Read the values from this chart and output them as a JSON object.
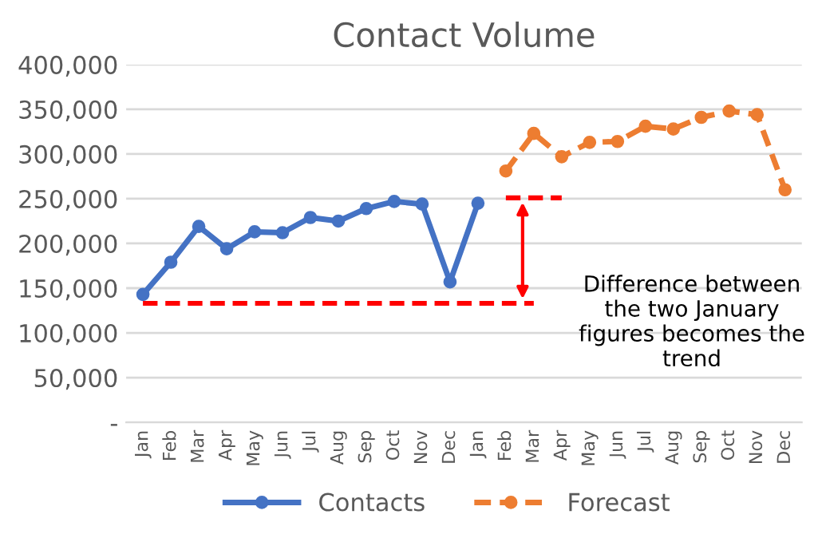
{
  "chart_data": {
    "type": "line",
    "title": "Contact Volume",
    "categories": [
      "Jan",
      "Feb",
      "Mar",
      "Apr",
      "May",
      "Jun",
      "Jul",
      "Aug",
      "Sep",
      "Oct",
      "Nov",
      "Dec",
      "Jan",
      "Feb",
      "Mar",
      "Apr",
      "May",
      "Jun",
      "Jul",
      "Aug",
      "Sep",
      "Oct",
      "Nov",
      "Dec"
    ],
    "series": [
      {
        "name": "Contacts",
        "color": "#4472c4",
        "marker": "circle",
        "line_style": "solid",
        "values": [
          143000,
          179000,
          219000,
          194000,
          213000,
          212000,
          229000,
          225000,
          239000,
          247000,
          244000,
          157000,
          245000,
          null,
          null,
          null,
          null,
          null,
          null,
          null,
          null,
          null,
          null,
          null
        ]
      },
      {
        "name": "Forecast",
        "color": "#ed7d31",
        "marker": "circle",
        "line_style": "dashed",
        "values": [
          null,
          null,
          null,
          null,
          null,
          null,
          null,
          null,
          null,
          null,
          null,
          null,
          null,
          281000,
          323000,
          297000,
          313000,
          314000,
          331000,
          328000,
          341000,
          348000,
          344000,
          260000
        ]
      },
      {
        "color": "#ff0000",
        "marker": "none",
        "line_style": "dashed",
        "values": [
          133000,
          133000,
          133000,
          133000,
          133000,
          133000,
          133000,
          133000,
          133000,
          133000,
          133000,
          133000,
          133000,
          133000,
          133000,
          null,
          null,
          null,
          null,
          null,
          null,
          null,
          null,
          null
        ]
      },
      {
        "color": "#ff0000",
        "marker": "none",
        "line_style": "dashed",
        "values": [
          null,
          null,
          null,
          null,
          null,
          null,
          null,
          null,
          null,
          null,
          null,
          null,
          null,
          251000,
          251000,
          251000,
          null,
          null,
          null,
          null,
          null,
          null,
          null,
          null
        ]
      }
    ],
    "ylim": [
      0,
      400000
    ],
    "yticks": [
      {
        "value": 0,
        "label": "-"
      },
      {
        "value": 50000,
        "label": "50,000"
      },
      {
        "value": 100000,
        "label": "100,000"
      },
      {
        "value": 150000,
        "label": "150,000"
      },
      {
        "value": 200000,
        "label": "200,000"
      },
      {
        "value": 250000,
        "label": "250,000"
      },
      {
        "value": 300000,
        "label": "300,000"
      },
      {
        "value": 350000,
        "label": "350,000"
      },
      {
        "value": 400000,
        "label": "400,000"
      }
    ],
    "grid": "y",
    "legend": "bottom",
    "annotations": [
      "Difference between the two January figures becomes the trend"
    ]
  }
}
